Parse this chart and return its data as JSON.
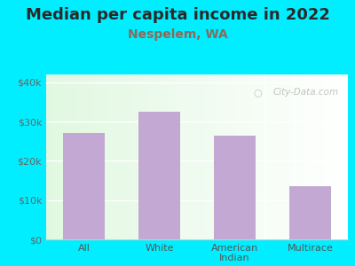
{
  "title": "Median per capita income in 2022",
  "subtitle": "Nespelem, WA",
  "categories": [
    "All",
    "White",
    "American\nIndian",
    "Multirace"
  ],
  "values": [
    27000,
    32500,
    26500,
    13500
  ],
  "bar_color": "#c4a8d4",
  "title_fontsize": 13,
  "subtitle_fontsize": 10,
  "subtitle_color": "#8a6a5a",
  "title_color": "#2a2a2a",
  "bg_outer": "#00eeff",
  "ylim": [
    0,
    42000
  ],
  "yticks": [
    0,
    10000,
    20000,
    30000,
    40000
  ],
  "ytick_labels": [
    "$0",
    "$10k",
    "$20k",
    "$30k",
    "$40k"
  ],
  "watermark": "City-Data.com",
  "xlabel_color": "#555555",
  "tick_color": "#666666"
}
